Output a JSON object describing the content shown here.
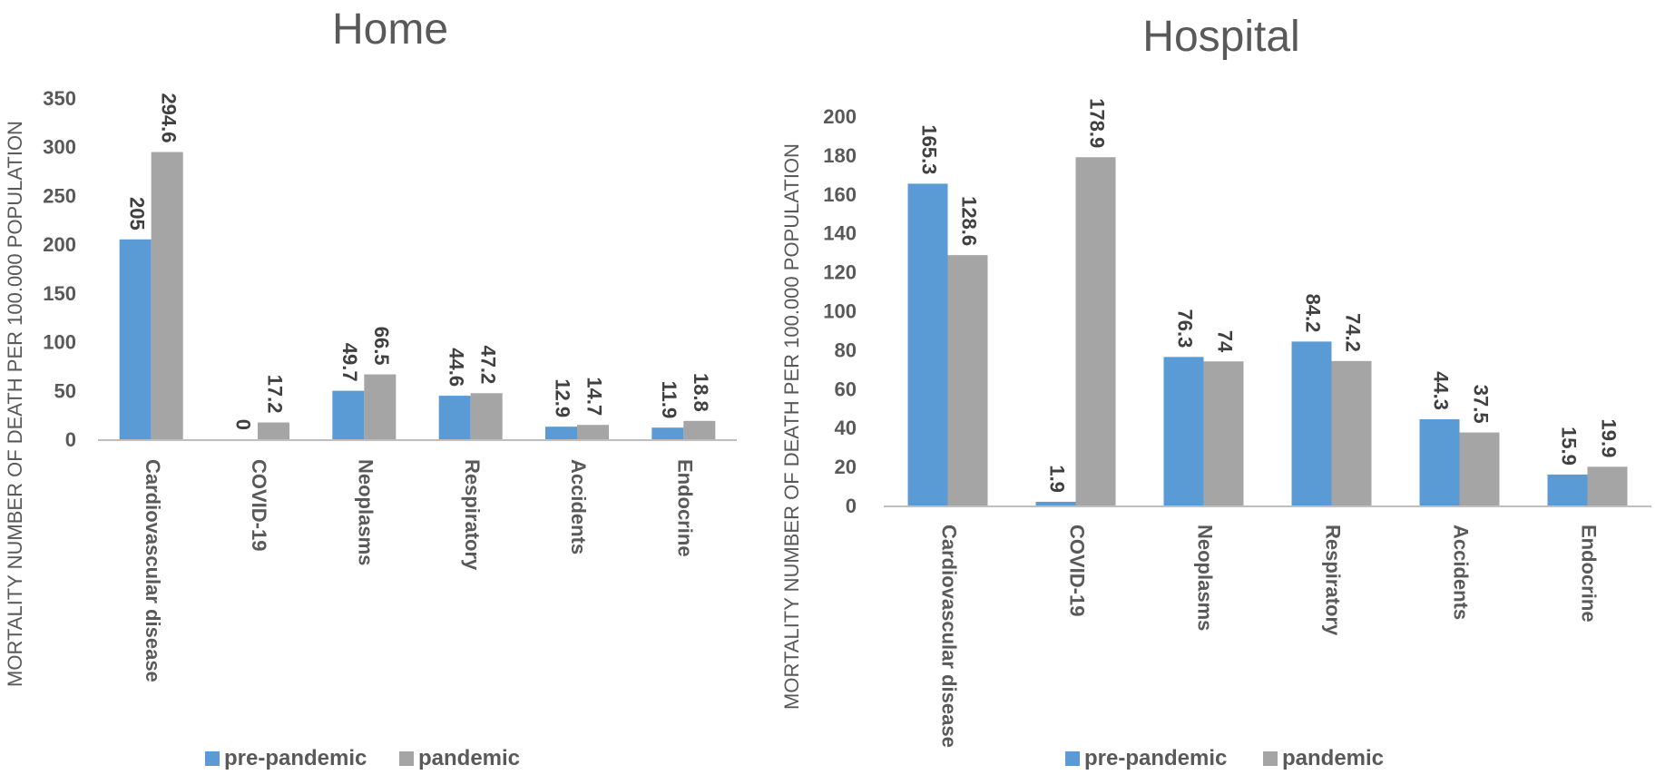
{
  "colors": {
    "pre": "#5b9bd5",
    "pan": "#a5a5a5",
    "axis": "#bfbfbf",
    "text": "#595959"
  },
  "chart_data": [
    {
      "type": "bar",
      "title": "Home",
      "ylabel": "MORTALITY NUMBER OF DEATH PER 100.000 POPULATION",
      "xlabel": "",
      "ylim": [
        0,
        350
      ],
      "yticks": [
        0,
        50,
        100,
        150,
        200,
        250,
        300,
        350
      ],
      "ytick_labels": [
        "0",
        "50",
        "100",
        "150",
        "200",
        "250",
        "300",
        "350"
      ],
      "categories": [
        "Cardiovascular disease",
        "COVID-19",
        "Neoplasms",
        "Respiratory",
        "Accidents",
        "Endocrine"
      ],
      "series": [
        {
          "name": "pre-pandemic",
          "values": [
            205,
            0,
            49.7,
            44.6,
            12.9,
            11.9
          ],
          "labels": [
            "205",
            "0",
            "49.7",
            "44.6",
            "12.9",
            "11.9"
          ]
        },
        {
          "name": "pandemic",
          "values": [
            294.6,
            17.2,
            66.5,
            47.2,
            14.7,
            18.8
          ],
          "labels": [
            "294.6",
            "17.2",
            "66.5",
            "47.2",
            "14.7",
            "18.8"
          ]
        }
      ],
      "legend": "bottom"
    },
    {
      "type": "bar",
      "title": "Hospital",
      "ylabel": "MORTALITY NUMBER OF DEATH PER 100.000 POPULATION",
      "xlabel": "",
      "ylim": [
        0,
        200
      ],
      "yticks": [
        0,
        20,
        40,
        60,
        80,
        100,
        120,
        140,
        160,
        180,
        200
      ],
      "ytick_labels": [
        "0",
        "20",
        "40",
        "60",
        "80",
        "100",
        "120",
        "140",
        "160",
        "180",
        "200"
      ],
      "categories": [
        "Cardiovascular disease",
        "COVID-19",
        "Neoplasms",
        "Respiratory",
        "Accidents",
        "Endocrine"
      ],
      "series": [
        {
          "name": "pre-pandemic",
          "values": [
            165.3,
            1.9,
            76.3,
            84.2,
            44.3,
            15.9
          ],
          "labels": [
            "165.3",
            "1.9",
            "76.3",
            "84.2",
            "44.3",
            "15.9"
          ]
        },
        {
          "name": "pandemic",
          "values": [
            128.6,
            178.9,
            74,
            74.2,
            37.5,
            19.9
          ],
          "labels": [
            "128.6",
            "178.9",
            "74",
            "74.2",
            "37.5",
            "19.9"
          ]
        }
      ],
      "legend": "bottom"
    }
  ]
}
